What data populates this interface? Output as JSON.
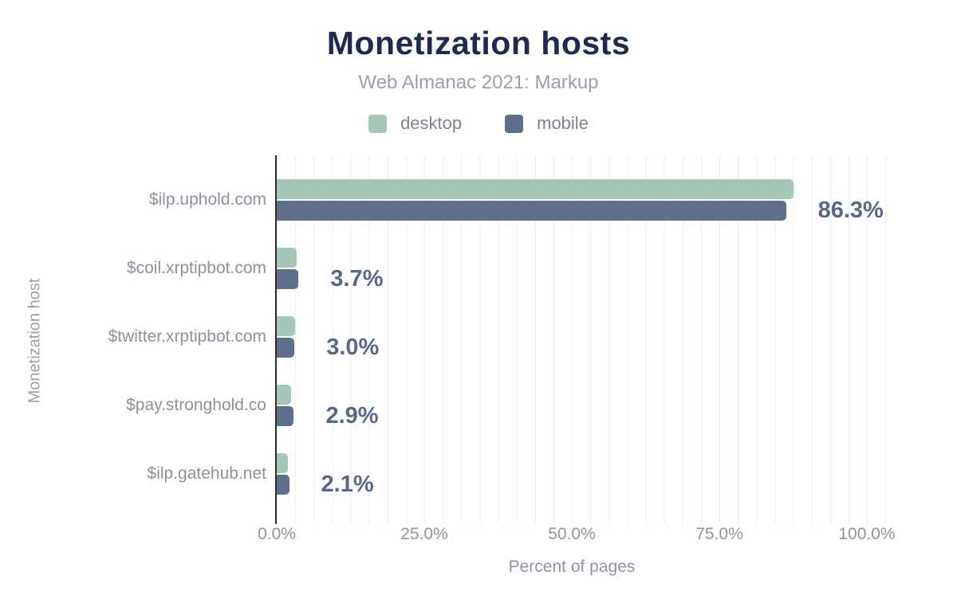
{
  "header": {
    "title": "Monetization hosts",
    "subtitle": "Web Almanac 2021: Markup"
  },
  "legend": {
    "desktop": {
      "label": "desktop",
      "color": "#a5c8b6"
    },
    "mobile": {
      "label": "mobile",
      "color": "#5e6f8c"
    }
  },
  "chart_data": {
    "type": "bar",
    "orientation": "horizontal",
    "title": "Monetization hosts",
    "subtitle": "Web Almanac 2021: Markup",
    "xlabel": "Percent of pages",
    "ylabel": "Monetization host",
    "xlim": [
      0,
      100
    ],
    "x_ticks": [
      "0.0%",
      "25.0%",
      "50.0%",
      "75.0%",
      "100.0%"
    ],
    "grid": "vertical-minor-gridlines",
    "legend_position": "top-center",
    "categories": [
      "$ilp.uphold.com",
      "$coil.xrptipbot.com",
      "$twitter.xrptipbot.com",
      "$pay.stronghold.co",
      "$ilp.gatehub.net"
    ],
    "series": [
      {
        "name": "desktop",
        "color": "#a5c8b6",
        "values": [
          87.5,
          3.4,
          3.1,
          2.4,
          1.9
        ]
      },
      {
        "name": "mobile",
        "color": "#5e6f8c",
        "values": [
          86.3,
          3.7,
          3.0,
          2.9,
          2.1
        ]
      }
    ],
    "value_labels": [
      "86.3%",
      "3.7%",
      "3.0%",
      "2.9%",
      "2.1%"
    ],
    "value_labels_series": "mobile",
    "colors": {
      "title": "#1e2b4e",
      "subtitle": "#9aa0ab",
      "axis_line": "#2e2e2e",
      "tick_label": "#8e939e",
      "category_label": "#8b919c",
      "value_label": "#57688a",
      "gridline": "#ececec"
    }
  }
}
